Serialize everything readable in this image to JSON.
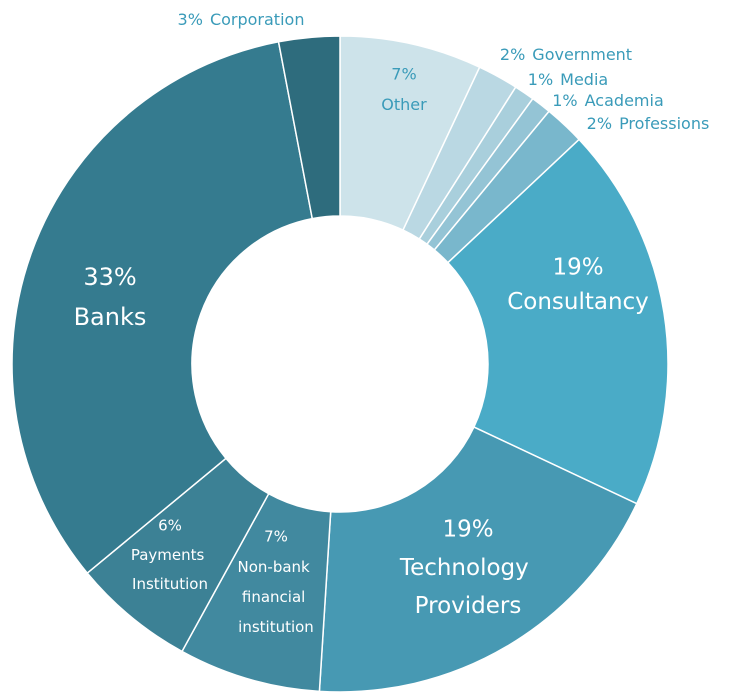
{
  "chart_data": {
    "type": "donut",
    "categories": [
      "Other",
      "Government",
      "Media",
      "Academia",
      "Professions",
      "Consultancy",
      "Technology Providers",
      "Non-bank financial institution",
      "Payments Institution",
      "Banks",
      "Corporation"
    ],
    "values": [
      7,
      2,
      1,
      1,
      2,
      19,
      19,
      7,
      6,
      33,
      3
    ],
    "value_labels": [
      "7%",
      "2%",
      "1%",
      "1%",
      "2%",
      "19%",
      "19%",
      "7%",
      "6%",
      "33%",
      "3%"
    ],
    "colors": [
      "#cde3ea",
      "#bad8e3",
      "#a9cfdc",
      "#94c4d5",
      "#79b7cc",
      "#4aabc7",
      "#4799b3",
      "#41899f",
      "#3c8195",
      "#357b8f",
      "#2e6c7d"
    ]
  }
}
